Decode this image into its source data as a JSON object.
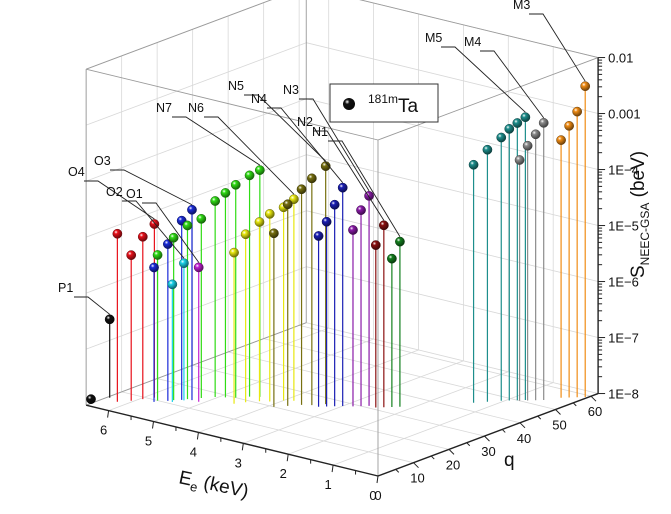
{
  "chart_data": {
    "type": "scatter3d",
    "title": "",
    "legend": {
      "symbol_label": "181mTa",
      "sup": "181m",
      "base": "Ta",
      "color": "#111111",
      "placement": "top-center"
    },
    "axes": {
      "x": {
        "label_main": "E",
        "label_sub": "e",
        "label_rest": " (keV)",
        "range": [
          0,
          6.5
        ],
        "ticks": [
          "0",
          "1",
          "2",
          "3",
          "4",
          "5",
          "6"
        ]
      },
      "y": {
        "label": "q",
        "range": [
          0,
          62
        ],
        "ticks": [
          "10",
          "20",
          "30",
          "40",
          "50",
          "60"
        ]
      },
      "z": {
        "label_main": "S",
        "label_sub": "NEEC-GSA",
        "label_rest": " (beV)",
        "scale": "log",
        "range": [
          1e-08,
          0.01
        ],
        "ticks": [
          "1E−8",
          "1E−7",
          "1E−6",
          "1E−5",
          "1E−4",
          "0.001",
          "0.01"
        ]
      }
    },
    "series": [
      {
        "name": "P1",
        "color": "#111111",
        "points": [
          {
            "E": 6.55,
            "q": 2,
            "log10S": -7.95
          },
          {
            "E": 6.45,
            "q": 6,
            "log10S": -6.6
          }
        ]
      },
      {
        "name": "O4",
        "color": "#e8101a",
        "points": [
          {
            "E": 6.2,
            "q": 5,
            "log10S": -5.0
          },
          {
            "E": 6.05,
            "q": 7,
            "log10S": -5.4
          },
          {
            "E": 5.95,
            "q": 9,
            "log10S": -5.1
          },
          {
            "E": 5.85,
            "q": 11,
            "log10S": -4.9
          }
        ]
      },
      {
        "name": "O3",
        "color": "#1a2bd8",
        "points": [
          {
            "E": 5.7,
            "q": 9,
            "log10S": -5.6
          },
          {
            "E": 5.55,
            "q": 11,
            "log10S": -5.2
          },
          {
            "E": 5.4,
            "q": 13,
            "log10S": -4.8
          },
          {
            "E": 5.25,
            "q": 14,
            "log10S": -4.6
          }
        ]
      },
      {
        "name": "O2",
        "color": "#19d2ea",
        "points": [
          {
            "E": 5.45,
            "q": 11,
            "log10S": -5.9
          },
          {
            "E": 5.35,
            "q": 13,
            "log10S": -5.55
          }
        ]
      },
      {
        "name": "O1",
        "color": "#c21fd2",
        "points": [
          {
            "E": 5.1,
            "q": 14,
            "log10S": -5.6
          }
        ]
      },
      {
        "name": "N7",
        "color": "#2fdc14",
        "points": [
          {
            "E": 5.7,
            "q": 10,
            "log10S": -5.4
          },
          {
            "E": 5.5,
            "q": 12,
            "log10S": -5.1
          },
          {
            "E": 5.35,
            "q": 14,
            "log10S": -4.9
          },
          {
            "E": 5.2,
            "q": 16,
            "log10S": -4.8
          },
          {
            "E": 5.05,
            "q": 18,
            "log10S": -4.5
          },
          {
            "E": 4.9,
            "q": 19,
            "log10S": -4.35
          },
          {
            "E": 4.75,
            "q": 20,
            "log10S": -4.2
          },
          {
            "E": 4.6,
            "q": 22,
            "log10S": -4.05
          },
          {
            "E": 4.45,
            "q": 23,
            "log10S": -3.95
          }
        ]
      },
      {
        "name": "N6",
        "color": "#e8e810",
        "points": [
          {
            "E": 4.55,
            "q": 17,
            "log10S": -5.3
          },
          {
            "E": 4.45,
            "q": 19,
            "log10S": -5.0
          },
          {
            "E": 4.3,
            "q": 21,
            "log10S": -4.8
          },
          {
            "E": 4.15,
            "q": 22,
            "log10S": -4.65
          },
          {
            "E": 4.0,
            "q": 24,
            "log10S": -4.55
          },
          {
            "E": 3.85,
            "q": 25,
            "log10S": -4.4
          }
        ]
      },
      {
        "name": "N5",
        "color": "#777010",
        "points": [
          {
            "E": 3.9,
            "q": 20,
            "log10S": -4.9
          },
          {
            "E": 3.75,
            "q": 22,
            "log10S": -4.4
          },
          {
            "E": 3.6,
            "q": 24,
            "log10S": -4.15
          },
          {
            "E": 3.45,
            "q": 25,
            "log10S": -3.95
          },
          {
            "E": 3.3,
            "q": 27,
            "log10S": -3.75
          }
        ]
      },
      {
        "name": "N4",
        "color": "#1a1eb4",
        "points": [
          {
            "E": 3.3,
            "q": 25,
            "log10S": -4.95
          },
          {
            "E": 3.2,
            "q": 26,
            "log10S": -4.7
          },
          {
            "E": 3.1,
            "q": 27,
            "log10S": -4.4
          },
          {
            "E": 3.0,
            "q": 28,
            "log10S": -4.1
          }
        ]
      },
      {
        "name": "N3",
        "color": "#8a1aa8",
        "points": [
          {
            "E": 2.85,
            "q": 29,
            "log10S": -4.85
          },
          {
            "E": 2.75,
            "q": 30,
            "log10S": -4.5
          },
          {
            "E": 2.65,
            "q": 31,
            "log10S": -4.25
          }
        ]
      },
      {
        "name": "N2",
        "color": "#8a1010",
        "points": [
          {
            "E": 2.5,
            "q": 31,
            "log10S": -5.1
          },
          {
            "E": 2.4,
            "q": 32,
            "log10S": -4.75
          }
        ]
      },
      {
        "name": "N1",
        "color": "#14801e",
        "points": [
          {
            "E": 2.3,
            "q": 33,
            "log10S": -5.35
          },
          {
            "E": 2.2,
            "q": 34,
            "log10S": -5.05
          }
        ]
      },
      {
        "name": "M5",
        "color": "#1d8e8c",
        "points": [
          {
            "E": 1.35,
            "q": 44,
            "log10S": -3.75
          },
          {
            "E": 1.2,
            "q": 46,
            "log10S": -3.5
          },
          {
            "E": 1.05,
            "q": 48,
            "log10S": -3.3
          },
          {
            "E": 0.95,
            "q": 49,
            "log10S": -3.15
          },
          {
            "E": 0.85,
            "q": 50,
            "log10S": -3.05
          },
          {
            "E": 0.75,
            "q": 51,
            "log10S": -2.95
          }
        ]
      },
      {
        "name": "M4",
        "color": "#8c8c8c",
        "points": [
          {
            "E": 0.8,
            "q": 50,
            "log10S": -3.7
          },
          {
            "E": 0.7,
            "q": 51,
            "log10S": -3.45
          },
          {
            "E": 0.6,
            "q": 52,
            "log10S": -3.25
          },
          {
            "E": 0.5,
            "q": 53,
            "log10S": -3.05
          }
        ]
      },
      {
        "name": "M3",
        "color": "#f08c14",
        "points": [
          {
            "E": 0.35,
            "q": 56,
            "log10S": -3.4
          },
          {
            "E": 0.25,
            "q": 57,
            "log10S": -3.15
          },
          {
            "E": 0.15,
            "q": 58,
            "log10S": -2.9
          },
          {
            "E": 0.05,
            "q": 59,
            "log10S": -2.45
          }
        ]
      }
    ]
  }
}
